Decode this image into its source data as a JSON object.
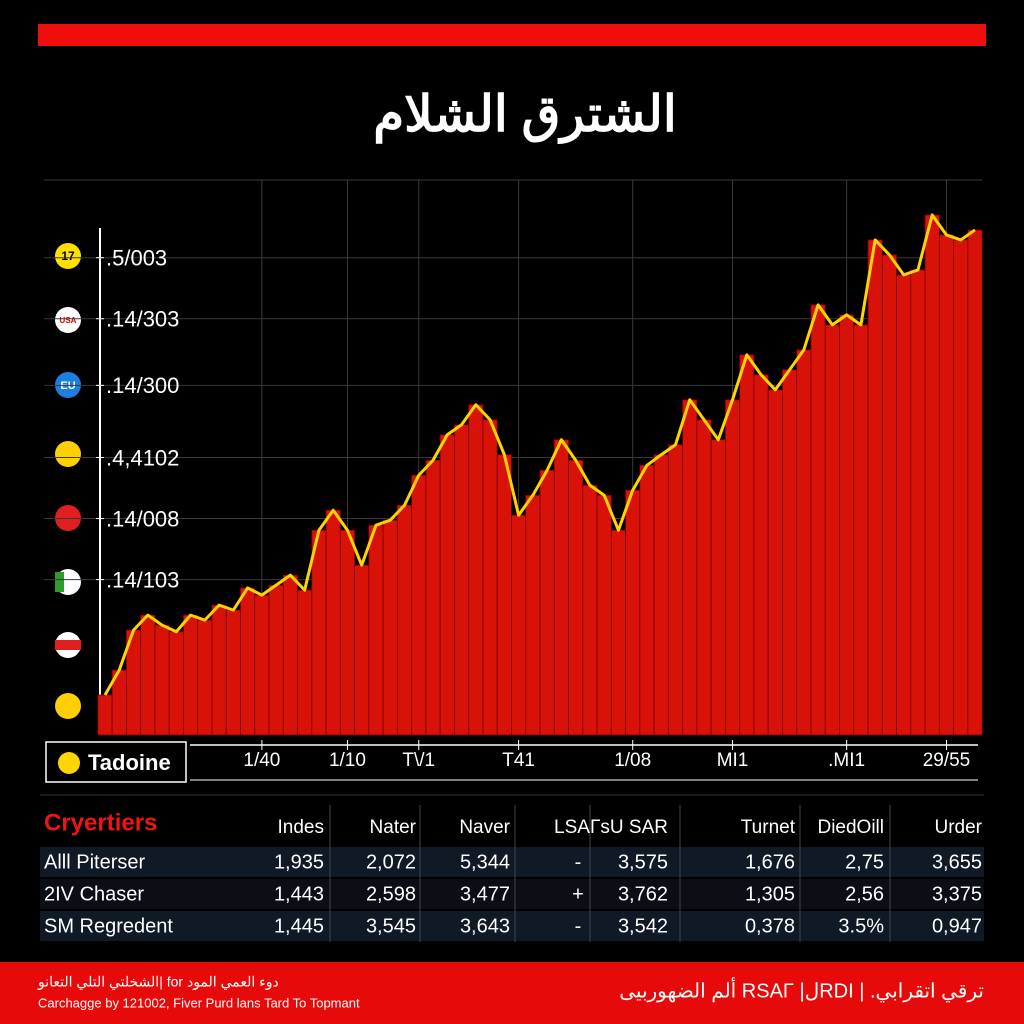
{
  "chart_data": {
    "type": "area",
    "title": "الشترق الشلام",
    "x": [
      0,
      1,
      2,
      3,
      4,
      5,
      6,
      7,
      8,
      9,
      10,
      11,
      12,
      13,
      14,
      15,
      16,
      17,
      18,
      19,
      20,
      21,
      22,
      23,
      24,
      25,
      26,
      27,
      28,
      29,
      30,
      31,
      32,
      33,
      34,
      35,
      36,
      37,
      38,
      39,
      40,
      41,
      42,
      43,
      44,
      45,
      46,
      47,
      48,
      49,
      50,
      51,
      52,
      53,
      54,
      55,
      56,
      57,
      58,
      59,
      60,
      61
    ],
    "values": [
      7.2,
      11.7,
      18.9,
      21.6,
      19.8,
      18.6,
      21.6,
      20.7,
      23.4,
      22.5,
      26.5,
      25.2,
      27.0,
      28.8,
      26.1,
      36.9,
      40.5,
      36.9,
      30.6,
      37.8,
      38.7,
      41.4,
      46.8,
      49.5,
      54.1,
      55.9,
      59.5,
      56.8,
      50.5,
      39.6,
      43.2,
      47.7,
      53.2,
      49.5,
      45.0,
      43.2,
      36.9,
      44.1,
      48.6,
      50.5,
      52.3,
      60.4,
      56.8,
      53.2,
      60.4,
      68.5,
      64.9,
      62.2,
      65.8,
      69.4,
      77.5,
      73.9,
      75.7,
      73.9,
      89.2,
      86.5,
      82.9,
      83.8,
      93.7,
      90.1,
      89.2,
      91.0
    ],
    "color": "#d81208",
    "line_color": "#ffd400",
    "xlim": [
      0,
      61
    ],
    "xticks": [
      {
        "value": 11,
        "label": "1/40"
      },
      {
        "value": 17,
        "label": "1/10"
      },
      {
        "value": 22,
        "label": "T\\/1"
      },
      {
        "value": 29,
        "label": "T41"
      },
      {
        "value": 37,
        "label": "1/08"
      },
      {
        "value": 44,
        "label": "MI1"
      },
      {
        "value": 52,
        "label": ".MI1"
      },
      {
        "value": 59,
        "label": "29/55"
      }
    ],
    "ylim": [
      0,
      100
    ],
    "yticks": [
      {
        "value": 86,
        "label": ".5/003"
      },
      {
        "value": 75,
        "label": ".14/303"
      },
      {
        "value": 63,
        "label": ".14/300"
      },
      {
        "value": 50,
        "label": ".4,4102"
      },
      {
        "value": 39,
        "label": ".14/008"
      },
      {
        "value": 28,
        "label": ".14/103"
      }
    ],
    "grid": true,
    "legend": "Tadoine"
  },
  "icons": [
    "17",
    "USA",
    "EU"
  ],
  "table": {
    "title": "Cryertiers",
    "columns": [
      "Indes",
      "Nater",
      "Naver",
      "LSAΓs",
      "U SAR",
      "Turnet",
      "DiedOill",
      "Urder"
    ],
    "rows": [
      [
        "Alll Piterser",
        "1,935",
        "2,072",
        "5,344",
        "-",
        "3,575",
        "1,676",
        "2,75",
        "3,655"
      ],
      [
        "2IV Chaser",
        "1,443",
        "2,598",
        "3,477",
        "+",
        "3,762",
        "1,305",
        "2,56",
        "3,375"
      ],
      [
        "SM Regredent",
        "1,445",
        "3,545",
        "3,643",
        "-",
        "3,542",
        "0,378",
        "3.5%",
        "0,947"
      ]
    ]
  },
  "footer": {
    "left": [
      "الشخلتي التلي التعانو| for دوء العمي المود",
      "Carchagge by 121002, Fiver Purd lans Tard To Topmant"
    ],
    "right": "ألم الضهوربيى RSAΓ |لRDI | .ترقي اتقرابي"
  }
}
